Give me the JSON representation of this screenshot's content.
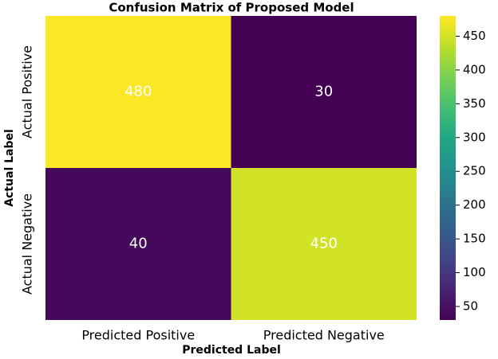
{
  "chart_data": {
    "type": "heatmap",
    "title": "Confusion Matrix of Proposed Model",
    "x_label": "Predicted Label",
    "y_label": "Actual Label",
    "x_categories": [
      "Predicted Positive",
      "Predicted Negative"
    ],
    "y_categories": [
      "Actual Positive",
      "Actual Negative"
    ],
    "values": [
      [
        480,
        30
      ],
      [
        40,
        450
      ]
    ],
    "colormap": "viridis",
    "colorbar_lim": [
      30,
      480
    ],
    "colorbar_ticks": [
      50,
      100,
      150,
      200,
      250,
      300,
      350,
      400,
      450
    ]
  }
}
